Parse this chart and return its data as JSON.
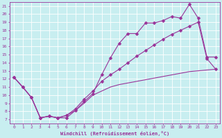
{
  "xlabel": "Windchill (Refroidissement éolien,°C)",
  "bg_color": "#c8eef0",
  "line_color": "#993399",
  "grid_color": "#ffffff",
  "xlim": [
    -0.5,
    23.5
  ],
  "ylim": [
    6.5,
    21.5
  ],
  "xticks": [
    0,
    1,
    2,
    3,
    4,
    5,
    6,
    7,
    8,
    9,
    10,
    11,
    12,
    13,
    14,
    15,
    16,
    17,
    18,
    19,
    20,
    21,
    22,
    23
  ],
  "yticks": [
    7,
    8,
    9,
    10,
    11,
    12,
    13,
    14,
    15,
    16,
    17,
    18,
    19,
    20,
    21
  ],
  "line1_upper": [
    [
      0,
      12.2
    ],
    [
      1,
      11.0
    ],
    [
      2,
      9.7
    ],
    [
      3,
      7.2
    ],
    [
      4,
      7.4
    ],
    [
      5,
      7.2
    ],
    [
      6,
      7.2
    ],
    [
      7,
      8.1
    ],
    [
      8,
      9.2
    ],
    [
      9,
      10.2
    ],
    [
      10,
      12.5
    ],
    [
      11,
      14.6
    ],
    [
      12,
      16.4
    ],
    [
      13,
      17.6
    ],
    [
      14,
      17.6
    ],
    [
      15,
      18.9
    ],
    [
      16,
      18.9
    ],
    [
      17,
      19.2
    ],
    [
      18,
      19.7
    ],
    [
      19,
      19.5
    ],
    [
      20,
      21.2
    ],
    [
      21,
      19.5
    ],
    [
      22,
      14.7
    ],
    [
      23,
      14.7
    ]
  ],
  "line2_mid": [
    [
      0,
      12.2
    ],
    [
      1,
      11.0
    ],
    [
      2,
      9.7
    ],
    [
      3,
      7.2
    ],
    [
      4,
      7.4
    ],
    [
      5,
      7.2
    ],
    [
      6,
      7.5
    ],
    [
      7,
      8.3
    ],
    [
      8,
      9.5
    ],
    [
      9,
      10.5
    ],
    [
      10,
      11.7
    ],
    [
      11,
      12.5
    ],
    [
      12,
      13.2
    ],
    [
      13,
      14.0
    ],
    [
      14,
      14.8
    ],
    [
      15,
      15.5
    ],
    [
      16,
      16.2
    ],
    [
      17,
      16.9
    ],
    [
      18,
      17.5
    ],
    [
      19,
      18.0
    ],
    [
      20,
      18.5
    ],
    [
      21,
      19.0
    ],
    [
      22,
      14.5
    ],
    [
      23,
      13.2
    ]
  ],
  "line3_lower": [
    [
      0,
      12.2
    ],
    [
      1,
      11.0
    ],
    [
      2,
      9.7
    ],
    [
      3,
      7.2
    ],
    [
      4,
      7.4
    ],
    [
      5,
      7.2
    ],
    [
      6,
      7.5
    ],
    [
      7,
      8.1
    ],
    [
      8,
      9.0
    ],
    [
      9,
      10.0
    ],
    [
      10,
      10.5
    ],
    [
      11,
      11.0
    ],
    [
      12,
      11.3
    ],
    [
      13,
      11.5
    ],
    [
      14,
      11.7
    ],
    [
      15,
      11.9
    ],
    [
      16,
      12.1
    ],
    [
      17,
      12.3
    ],
    [
      18,
      12.5
    ],
    [
      19,
      12.7
    ],
    [
      20,
      12.9
    ],
    [
      21,
      13.0
    ],
    [
      22,
      13.1
    ],
    [
      23,
      13.2
    ]
  ],
  "marker_size": 2.5,
  "line_width": 0.8
}
